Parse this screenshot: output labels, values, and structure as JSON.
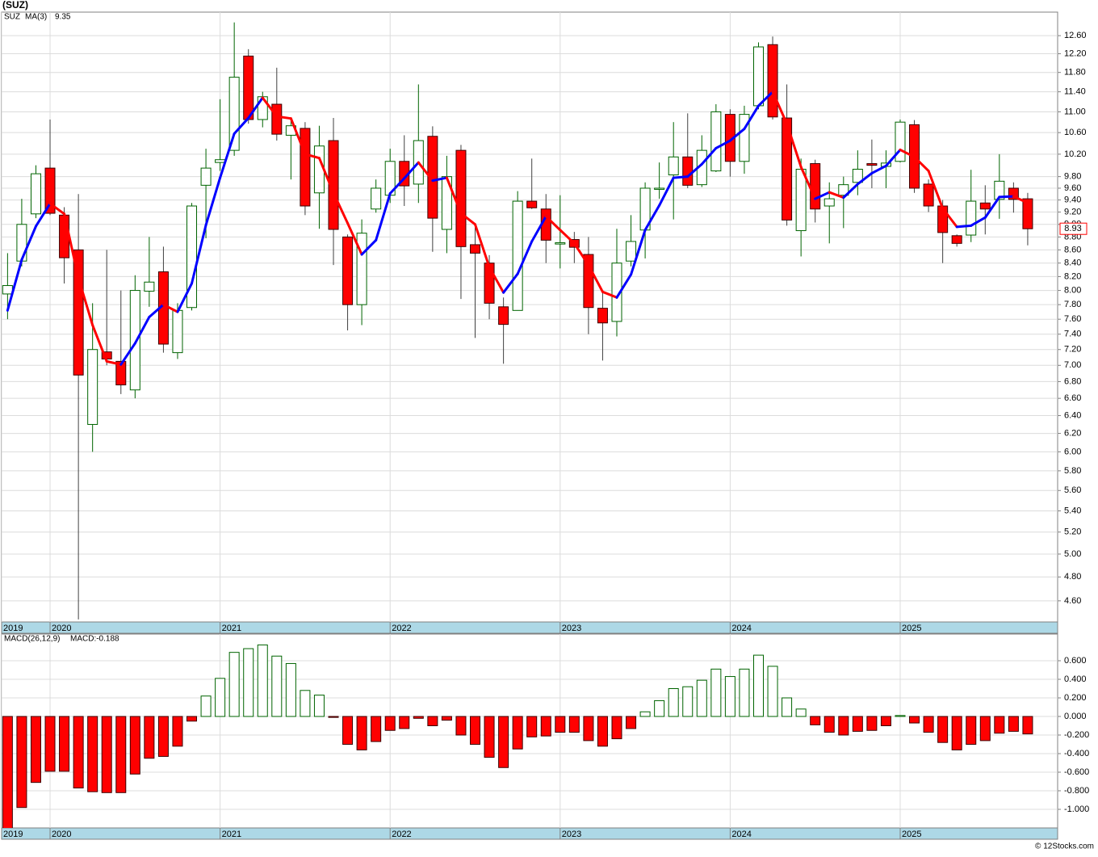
{
  "chart_data": [
    {
      "type": "candlestick",
      "title": "(SUZ)",
      "name": "SUZ",
      "log_scale": true,
      "grid": true,
      "up_color": "#ffffff",
      "up_stroke": "#006400",
      "down_color": "#ff0000",
      "down_stroke": "#3a0000",
      "x": [
        2019.75,
        2019.8333,
        2019.9167,
        2020,
        2020.0833,
        2020.1667,
        2020.25,
        2020.3333,
        2020.4167,
        2020.5,
        2020.5833,
        2020.6667,
        2020.75,
        2020.8333,
        2020.9167,
        2021,
        2021.0833,
        2021.1667,
        2021.25,
        2021.3333,
        2021.4167,
        2021.5,
        2021.5833,
        2021.6667,
        2021.75,
        2021.8333,
        2021.9167,
        2022,
        2022.0833,
        2022.1667,
        2022.25,
        2022.3333,
        2022.4167,
        2022.5,
        2022.5833,
        2022.6667,
        2022.75,
        2022.8333,
        2022.9167,
        2023,
        2023.0833,
        2023.1667,
        2023.25,
        2023.3333,
        2023.4167,
        2023.5,
        2023.5833,
        2023.6667,
        2023.75,
        2023.8333,
        2023.9167,
        2024,
        2024.0833,
        2024.1667,
        2024.25,
        2024.3333,
        2024.4167,
        2024.5,
        2024.5833,
        2024.6667,
        2024.75,
        2024.8333,
        2024.9167,
        2025,
        2025.0833,
        2025.1667,
        2025.25,
        2025.3333,
        2025.4167,
        2025.5,
        2025.5833,
        2025.6667,
        2025.75
      ],
      "open": [
        7.95,
        8.43,
        9.17,
        9.95,
        9.15,
        8.6,
        6.3,
        7.17,
        7.05,
        6.7,
        7.99,
        8.27,
        7.16,
        7.76,
        9.65,
        10.05,
        10.27,
        12.15,
        10.85,
        11.15,
        10.55,
        10.68,
        9.52,
        10.45,
        8.8,
        7.8,
        9.25,
        9.48,
        10.07,
        9.67,
        10.53,
        8.92,
        10.27,
        8.68,
        8.4,
        7.77,
        7.72,
        9.38,
        9.25,
        8.69,
        8.76,
        8.53,
        7.75,
        7.57,
        8.43,
        8.91,
        9.58,
        9.83,
        10.15,
        9.66,
        9.9,
        10.95,
        10.07,
        11.12,
        12.4,
        10.88,
        8.9,
        10.03,
        9.3,
        9.48,
        9.7,
        10.03,
        9.98,
        10.07,
        10.75,
        9.67,
        9.3,
        8.82,
        8.83,
        9.35,
        9.41,
        9.6,
        9.42
      ],
      "high": [
        8.55,
        9.42,
        10.0,
        10.85,
        9.28,
        9.5,
        7.82,
        8.6,
        8.0,
        8.22,
        8.8,
        8.65,
        7.82,
        9.35,
        10.3,
        11.25,
        12.9,
        12.3,
        11.4,
        11.9,
        10.88,
        10.8,
        10.73,
        10.88,
        8.84,
        9.08,
        9.75,
        10.3,
        10.55,
        11.55,
        10.72,
        10.17,
        10.37,
        8.97,
        8.52,
        7.9,
        9.55,
        10.12,
        9.5,
        9.48,
        8.88,
        8.8,
        8.0,
        8.93,
        9.15,
        9.7,
        10.05,
        10.8,
        10.97,
        10.55,
        11.15,
        11.05,
        11.12,
        12.45,
        12.58,
        11.55,
        10.12,
        10.1,
        9.7,
        9.8,
        10.27,
        10.47,
        10.27,
        10.85,
        10.84,
        9.75,
        9.4,
        8.84,
        9.92,
        9.65,
        10.2,
        9.7,
        9.52
      ],
      "low": [
        7.6,
        8.35,
        9.1,
        9.15,
        8.1,
        4.45,
        6.0,
        7.0,
        6.65,
        6.6,
        7.77,
        7.16,
        7.08,
        7.72,
        8.78,
        9.9,
        10.17,
        10.77,
        10.7,
        10.45,
        9.75,
        9.15,
        8.93,
        8.37,
        7.45,
        7.52,
        9.19,
        9.35,
        9.3,
        9.35,
        8.57,
        8.55,
        7.88,
        7.35,
        7.6,
        7.02,
        7.72,
        9.25,
        8.4,
        8.32,
        8.4,
        7.4,
        7.06,
        7.37,
        8.35,
        8.47,
        9.42,
        9.08,
        9.6,
        9.62,
        9.88,
        9.8,
        9.85,
        11.05,
        10.85,
        8.98,
        8.5,
        9.03,
        8.7,
        8.94,
        9.48,
        9.6,
        9.6,
        10.05,
        9.52,
        9.2,
        8.4,
        8.65,
        8.72,
        8.84,
        9.09,
        9.19,
        8.67
      ],
      "close": [
        8.07,
        9.0,
        9.85,
        9.18,
        8.48,
        6.88,
        7.2,
        7.08,
        6.76,
        8.0,
        8.12,
        7.27,
        7.72,
        9.3,
        9.95,
        10.1,
        11.7,
        10.85,
        11.3,
        10.57,
        10.73,
        9.3,
        10.35,
        8.92,
        7.8,
        8.86,
        9.6,
        10.07,
        9.64,
        10.45,
        9.1,
        9.8,
        8.65,
        8.55,
        7.82,
        7.53,
        9.38,
        9.27,
        8.75,
        8.71,
        8.64,
        7.76,
        7.55,
        8.4,
        8.73,
        9.6,
        9.6,
        10.15,
        9.65,
        10.27,
        11.0,
        10.07,
        10.95,
        12.35,
        10.9,
        9.07,
        9.93,
        9.25,
        9.42,
        9.66,
        9.93,
        10.0,
        10.04,
        10.8,
        9.6,
        9.3,
        8.87,
        8.7,
        9.38,
        9.25,
        9.72,
        9.41,
        8.93
      ],
      "ma": {
        "name": "MA(3)",
        "up_color": "#0000ff",
        "down_color": "#ff0000",
        "values": [
          7.72,
          8.45,
          8.97,
          9.34,
          9.17,
          8.18,
          7.52,
          7.05,
          7.01,
          7.28,
          7.63,
          7.8,
          7.7,
          8.1,
          8.99,
          9.78,
          10.58,
          10.88,
          11.28,
          10.91,
          10.87,
          10.2,
          10.13,
          9.52,
          9.02,
          8.53,
          8.75,
          9.51,
          9.77,
          10.05,
          9.73,
          9.78,
          9.18,
          9.0,
          8.34,
          7.97,
          8.24,
          8.73,
          9.13,
          8.91,
          8.7,
          8.37,
          7.98,
          7.9,
          8.23,
          8.91,
          9.31,
          9.78,
          9.8,
          10.02,
          10.31,
          10.45,
          10.67,
          11.12,
          11.4,
          10.77,
          9.97,
          9.42,
          9.53,
          9.44,
          9.67,
          9.86,
          9.99,
          10.28,
          10.15,
          9.9,
          9.26,
          8.96,
          8.98,
          9.11,
          9.45,
          9.46,
          9.35
        ]
      },
      "xlim": [
        2019.715,
        2025.926
      ],
      "xticks": [
        {
          "value": 2019.715,
          "label": "2019"
        },
        2020,
        2021,
        2022,
        2023,
        2024,
        2025
      ],
      "ylim": [
        4.43,
        13.14
      ],
      "yticks": [
        {
          "value": 4.6,
          "label": "4.60"
        },
        {
          "value": 4.8,
          "label": "4.80"
        },
        {
          "value": 5,
          "label": "5.00"
        },
        {
          "value": 5.2,
          "label": "5.20"
        },
        {
          "value": 5.4,
          "label": "5.40"
        },
        {
          "value": 5.6,
          "label": "5.60"
        },
        {
          "value": 5.8,
          "label": "5.80"
        },
        {
          "value": 6,
          "label": "6.00"
        },
        {
          "value": 6.2,
          "label": "6.20"
        },
        {
          "value": 6.4,
          "label": "6.40"
        },
        {
          "value": 6.6,
          "label": "6.60"
        },
        {
          "value": 6.8,
          "label": "6.80"
        },
        {
          "value": 7,
          "label": "7.00"
        },
        {
          "value": 7.2,
          "label": "7.20"
        },
        {
          "value": 7.4,
          "label": "7.40"
        },
        {
          "value": 7.6,
          "label": "7.60"
        },
        {
          "value": 7.8,
          "label": "7.80"
        },
        {
          "value": 8,
          "label": "8.00"
        },
        {
          "value": 8.2,
          "label": "8.20"
        },
        {
          "value": 8.4,
          "label": "8.40"
        },
        {
          "value": 8.6,
          "label": "8.60"
        },
        {
          "value": 8.8,
          "label": "8.80"
        },
        {
          "value": 9,
          "label": "9.00"
        },
        {
          "value": 9.2,
          "label": "9.20"
        },
        {
          "value": 9.4,
          "label": "9.40"
        },
        {
          "value": 9.6,
          "label": "9.60"
        },
        {
          "value": 9.8,
          "label": "9.80"
        },
        {
          "value": 10.2,
          "label": "10.20"
        },
        {
          "value": 10.6,
          "label": "10.60"
        },
        {
          "value": 11,
          "label": "11.00"
        },
        {
          "value": 11.4,
          "label": "11.40"
        },
        {
          "value": 11.8,
          "label": "11.80"
        },
        {
          "value": 12.2,
          "label": "12.20"
        },
        {
          "value": 12.6,
          "label": "12.60"
        }
      ]
    },
    {
      "type": "bar",
      "title": "MACD(26,12,9)",
      "readout": "MACD:-0.188",
      "grid": true,
      "up_color": "#ffffff",
      "up_stroke": "#006400",
      "down_color": "#ff0000",
      "down_stroke": "#3a0000",
      "x": [
        2019.75,
        2019.8333,
        2019.9167,
        2020,
        2020.0833,
        2020.1667,
        2020.25,
        2020.3333,
        2020.4167,
        2020.5,
        2020.5833,
        2020.6667,
        2020.75,
        2020.8333,
        2020.9167,
        2021,
        2021.0833,
        2021.1667,
        2021.25,
        2021.3333,
        2021.4167,
        2021.5,
        2021.5833,
        2021.6667,
        2021.75,
        2021.8333,
        2021.9167,
        2022,
        2022.0833,
        2022.1667,
        2022.25,
        2022.3333,
        2022.4167,
        2022.5,
        2022.5833,
        2022.6667,
        2022.75,
        2022.8333,
        2022.9167,
        2023,
        2023.0833,
        2023.1667,
        2023.25,
        2023.3333,
        2023.4167,
        2023.5,
        2023.5833,
        2023.6667,
        2023.75,
        2023.8333,
        2023.9167,
        2024,
        2024.0833,
        2024.1667,
        2024.25,
        2024.3333,
        2024.4167,
        2024.5,
        2024.5833,
        2024.6667,
        2024.75,
        2024.8333,
        2024.9167,
        2025,
        2025.0833,
        2025.1667,
        2025.25,
        2025.3333,
        2025.4167,
        2025.5,
        2025.5833,
        2025.6667,
        2025.75
      ],
      "values": [
        -1.25,
        -0.98,
        -0.71,
        -0.59,
        -0.59,
        -0.77,
        -0.81,
        -0.82,
        -0.82,
        -0.62,
        -0.45,
        -0.43,
        -0.32,
        -0.05,
        0.22,
        0.41,
        0.69,
        0.73,
        0.77,
        0.65,
        0.57,
        0.28,
        0.23,
        -0.01,
        -0.3,
        -0.36,
        -0.27,
        -0.15,
        -0.13,
        -0.02,
        -0.1,
        -0.04,
        -0.2,
        -0.3,
        -0.44,
        -0.55,
        -0.35,
        -0.22,
        -0.21,
        -0.17,
        -0.17,
        -0.26,
        -0.32,
        -0.24,
        -0.13,
        0.05,
        0.17,
        0.3,
        0.32,
        0.39,
        0.51,
        0.43,
        0.51,
        0.66,
        0.54,
        0.2,
        0.08,
        -0.09,
        -0.17,
        -0.2,
        -0.16,
        -0.15,
        -0.1,
        0.01,
        -0.07,
        -0.17,
        -0.28,
        -0.36,
        -0.3,
        -0.26,
        -0.18,
        -0.16,
        -0.188
      ],
      "xlim": [
        2019.715,
        2025.926
      ],
      "xticks": [
        {
          "value": 2019.715,
          "label": "2019"
        },
        2020,
        2021,
        2022,
        2023,
        2024,
        2025
      ],
      "ylim": [
        -1.2,
        0.887
      ],
      "yticks": [
        {
          "value": 0.6,
          "label": "0.600"
        },
        {
          "value": 0.4,
          "label": "0.400"
        },
        {
          "value": 0.2,
          "label": "0.200"
        },
        {
          "value": 0,
          "label": "0.000"
        },
        {
          "value": -0.2,
          "label": "-0.200"
        },
        {
          "value": -0.4,
          "label": "-0.400"
        },
        {
          "value": -0.6,
          "label": "-0.600"
        },
        {
          "value": -0.8,
          "label": "-0.800"
        },
        {
          "value": -1,
          "label": "-1.000"
        }
      ]
    }
  ],
  "footer": "© 12Stocks.com"
}
